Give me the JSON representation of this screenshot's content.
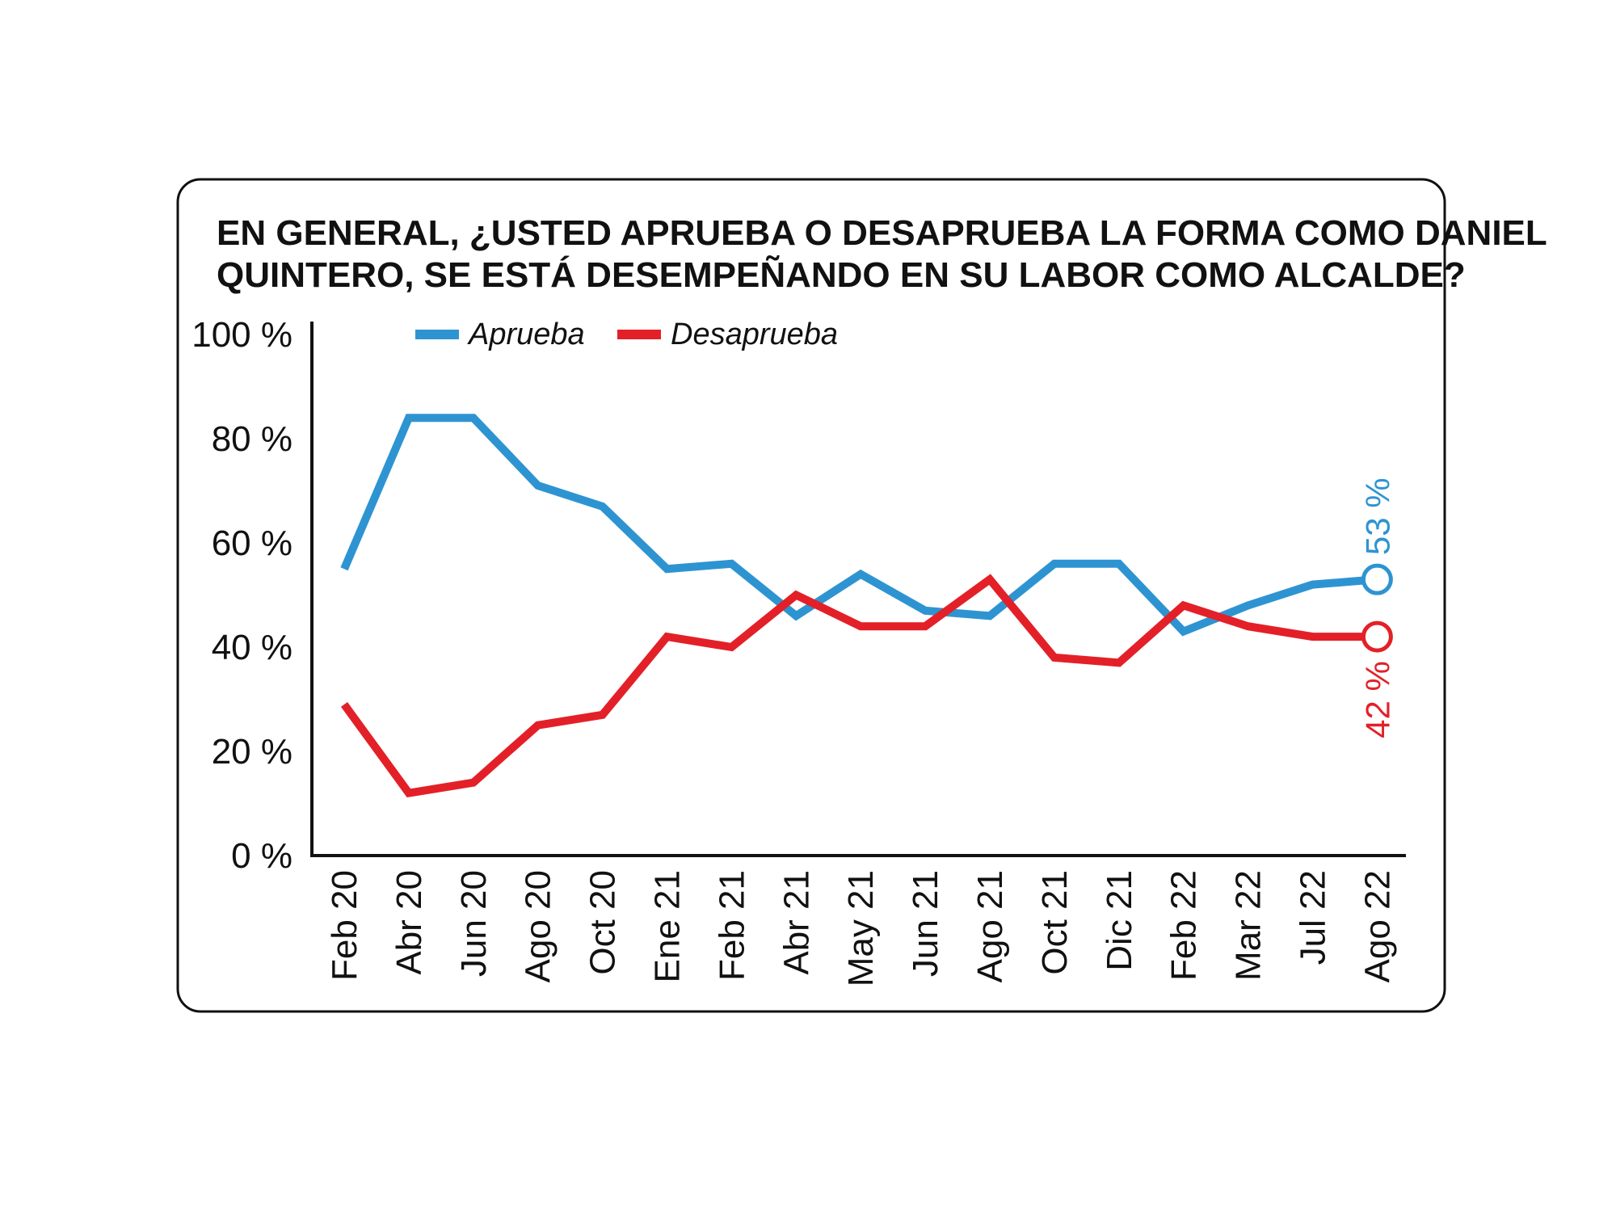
{
  "chart_data": {
    "type": "line",
    "title_lines": [
      "EN GENERAL, ¿USTED APRUEBA O DESAPRUEBA LA FORMA COMO DANIEL",
      "QUINTERO, SE ESTÁ DESEMPEÑANDO EN SU LABOR COMO ALCALDE?"
    ],
    "categories": [
      "Feb 20",
      "Abr 20",
      "Jun 20",
      "Ago 20",
      "Oct 20",
      "Ene 21",
      "Feb 21",
      "Abr 21",
      "May 21",
      "Jun 21",
      "Ago 21",
      "Oct 21",
      "Dic 21",
      "Feb 22",
      "Mar 22",
      "Jul 22",
      "Ago 22"
    ],
    "y_ticks": [
      "0 %",
      "20 %",
      "40 %",
      "60 %",
      "80 %",
      "100 %"
    ],
    "ylim": [
      0,
      100
    ],
    "grid": false,
    "legend_position": "top-left",
    "series": [
      {
        "name": "Aprueba",
        "color": "#2e94d1",
        "values": [
          55,
          84,
          84,
          71,
          67,
          55,
          56,
          46,
          54,
          47,
          46,
          56,
          56,
          43,
          48,
          52,
          53
        ],
        "end_label": "53 %"
      },
      {
        "name": "Desaprueba",
        "color": "#e32028",
        "values": [
          29,
          12,
          14,
          25,
          27,
          42,
          40,
          50,
          44,
          44,
          53,
          38,
          37,
          48,
          44,
          42,
          42
        ],
        "end_label": "42 %"
      }
    ]
  }
}
